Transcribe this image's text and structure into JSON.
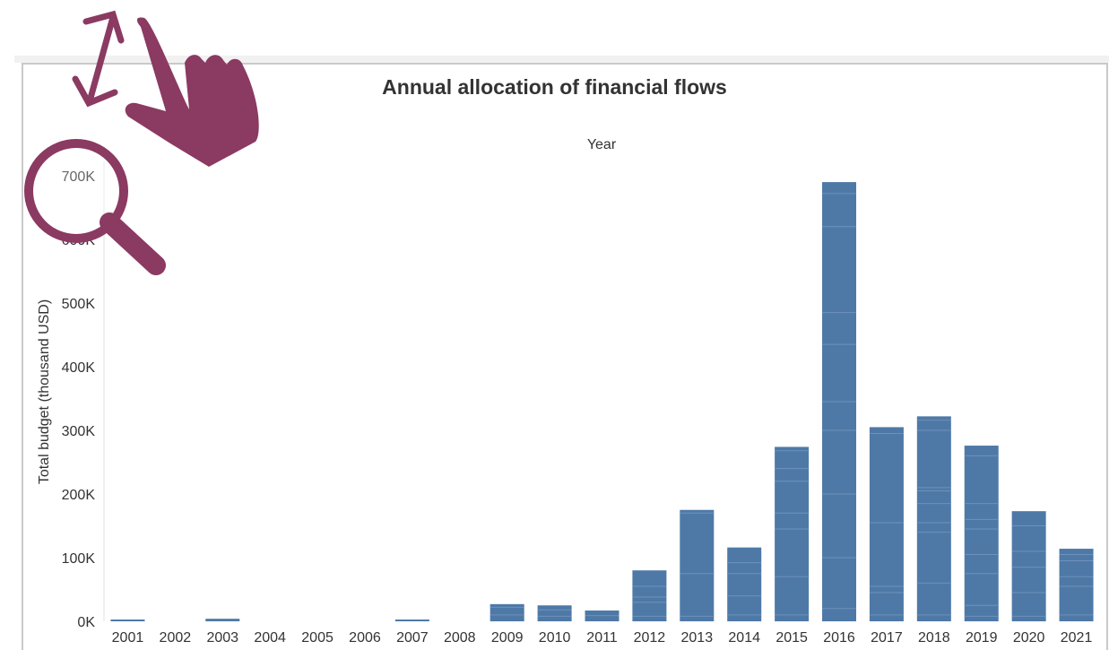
{
  "chart_data": {
    "type": "bar",
    "title": "Annual allocation of financial flows",
    "column_header": "Year",
    "ylabel": "Total budget (thousand USD)",
    "xlabel": "",
    "ylim": [
      0,
      700000
    ],
    "yticks": [
      {
        "value": 0,
        "label": "0K"
      },
      {
        "value": 100000,
        "label": "100K"
      },
      {
        "value": 200000,
        "label": "200K"
      },
      {
        "value": 300000,
        "label": "300K"
      },
      {
        "value": 400000,
        "label": "400K"
      },
      {
        "value": 500000,
        "label": "500K"
      },
      {
        "value": 600000,
        "label": "600K"
      },
      {
        "value": 700000,
        "label": "700K"
      }
    ],
    "categories": [
      "2001",
      "2002",
      "2003",
      "2004",
      "2005",
      "2006",
      "2007",
      "2008",
      "2009",
      "2010",
      "2011",
      "2012",
      "2013",
      "2014",
      "2015",
      "2016",
      "2017",
      "2018",
      "2019",
      "2020",
      "2021"
    ],
    "values": [
      1000,
      0,
      4000,
      0,
      0,
      0,
      1000,
      0,
      27000,
      25000,
      17000,
      80000,
      175000,
      116000,
      274000,
      690000,
      305000,
      322000,
      276000,
      173000,
      114000
    ],
    "segments": [
      [],
      [],
      [],
      [],
      [],
      [],
      [],
      [],
      [
        10000,
        22000
      ],
      [
        8000,
        18000
      ],
      [
        9000
      ],
      [
        8000,
        30000,
        38000,
        55000
      ],
      [
        8000,
        75000,
        170000
      ],
      [
        10000,
        40000,
        75000,
        92000
      ],
      [
        10000,
        70000,
        145000,
        170000,
        220000,
        240000,
        268000
      ],
      [
        20000,
        100000,
        200000,
        300000,
        345000,
        435000,
        485000,
        620000,
        672000
      ],
      [
        10000,
        45000,
        55000,
        155000,
        295000
      ],
      [
        10000,
        60000,
        140000,
        155000,
        185000,
        205000,
        210000,
        300000,
        316000
      ],
      [
        8000,
        25000,
        75000,
        105000,
        145000,
        160000,
        185000,
        260000
      ],
      [
        8000,
        45000,
        85000,
        110000,
        150000
      ],
      [
        10000,
        55000,
        70000,
        95000,
        105000
      ]
    ],
    "bar_color": "#4e79a7",
    "grid": false
  },
  "overlays": {
    "accent_color": "#8b3a62",
    "icons": [
      "resize-arrow-icon",
      "pointing-hand-icon",
      "magnifier-icon"
    ]
  }
}
